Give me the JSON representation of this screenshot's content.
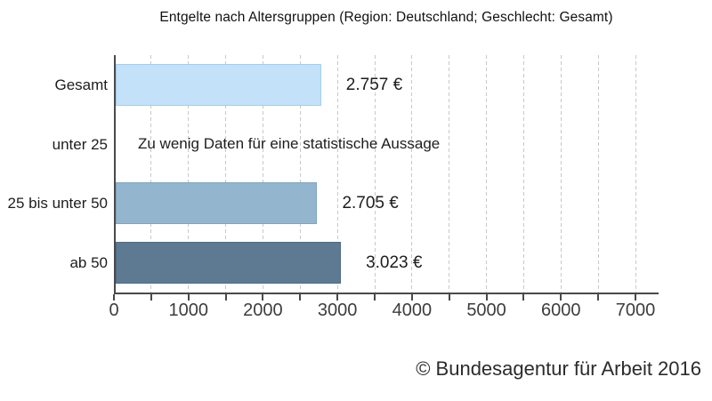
{
  "title": "Entgelte nach Altersgruppen (Region: Deutschland; Geschlecht: Gesamt)",
  "footer": "© Bundesagentur für Arbeit 2016",
  "chart_data": {
    "type": "bar",
    "orientation": "horizontal",
    "title": "Entgelte nach Altersgruppen (Region: Deutschland; Geschlecht: Gesamt)",
    "categories": [
      "Gesamt",
      "unter 25",
      "25 bis unter 50",
      "ab 50"
    ],
    "values": [
      2757,
      null,
      2705,
      3023
    ],
    "value_labels": [
      "2.757 €",
      null,
      "2.705 €",
      "3.023 €"
    ],
    "no_data_text": "Zu wenig Daten für eine statistische Aussage",
    "xlim": [
      0,
      7000
    ],
    "x_ticks": [
      0,
      1000,
      2000,
      3000,
      4000,
      5000,
      6000,
      7000
    ],
    "x_minor_step": 500,
    "grid": "vertical dashed every 500, behind bars",
    "legend": "none",
    "bar_colors": [
      "#c3e1f8",
      null,
      "#94b5ce",
      "#5d7a92"
    ],
    "bar_border_colors": [
      "#a5cdeb",
      null,
      "#7ea6c1",
      "#4d6c85"
    ],
    "axis_color": "#4a4a4a",
    "grid_color": "#c8c8c8",
    "background_color": "#ffffff"
  }
}
